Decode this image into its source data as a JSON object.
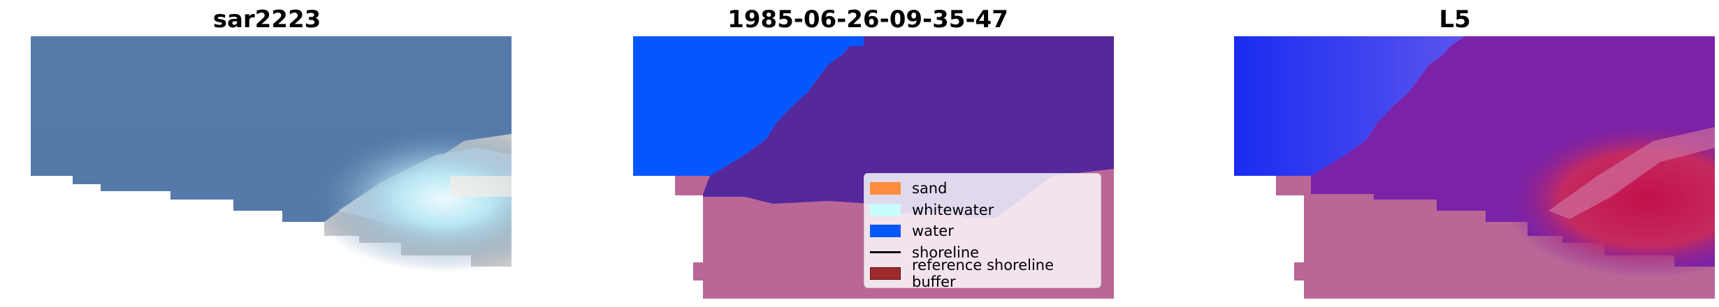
{
  "panels": [
    {
      "title": "sar2223"
    },
    {
      "title": "1985-06-26-09-35-47"
    },
    {
      "title": "L5"
    }
  ],
  "legend": {
    "items": [
      {
        "label": "sand",
        "color": "#ff8c3f",
        "kind": "patch"
      },
      {
        "label": "whitewater",
        "color": "#c8fcff",
        "kind": "patch"
      },
      {
        "label": "water",
        "color": "#0657ff",
        "kind": "patch"
      },
      {
        "label": "shoreline",
        "color": "#000000",
        "kind": "line"
      },
      {
        "label": "reference shoreline buffer",
        "color": "#9e2b2b",
        "kind": "patch"
      }
    ]
  },
  "colors": {
    "rgb_water": "#5579a8",
    "class_water": "#0657ff",
    "class_purple": "#55289c",
    "class_pink": "#ba6696",
    "blend_purple": "#7a22a8",
    "blend_red": "#c4104a"
  }
}
